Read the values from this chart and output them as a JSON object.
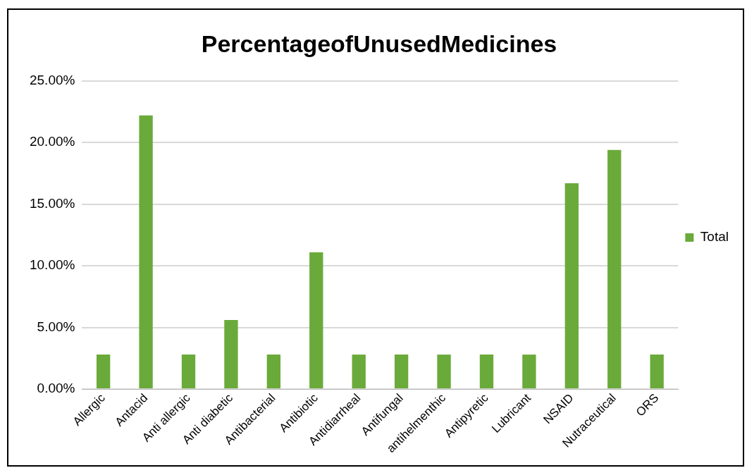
{
  "chart_data": {
    "type": "bar",
    "title": "PercentageofUnusedMedicines",
    "categories": [
      "Allergic",
      "Antacid",
      "Anti allergic",
      "Anti diabetic",
      "Antibacterial",
      "Antibiotic",
      "Antidiarrheal",
      "Antifungal",
      "antihelmenthic",
      "Antipyretic",
      "Lubricant",
      "NSAID",
      "Nutraceutical",
      "ORS"
    ],
    "series": [
      {
        "name": "Total",
        "color": "#6aaa3a",
        "values": [
          2.8,
          22.2,
          2.8,
          5.6,
          2.8,
          11.1,
          2.8,
          2.8,
          2.8,
          2.8,
          2.8,
          16.7,
          19.4,
          2.8
        ]
      }
    ],
    "ylim": [
      0,
      25
    ],
    "yticks": [
      {
        "value": 0,
        "label": "0.00%"
      },
      {
        "value": 5,
        "label": "5.00%"
      },
      {
        "value": 10,
        "label": "10.00%"
      },
      {
        "value": 15,
        "label": "15.00%"
      },
      {
        "value": 20,
        "label": "20.00%"
      },
      {
        "value": 25,
        "label": "25.00%"
      }
    ],
    "grid": "y",
    "legend": "right"
  }
}
